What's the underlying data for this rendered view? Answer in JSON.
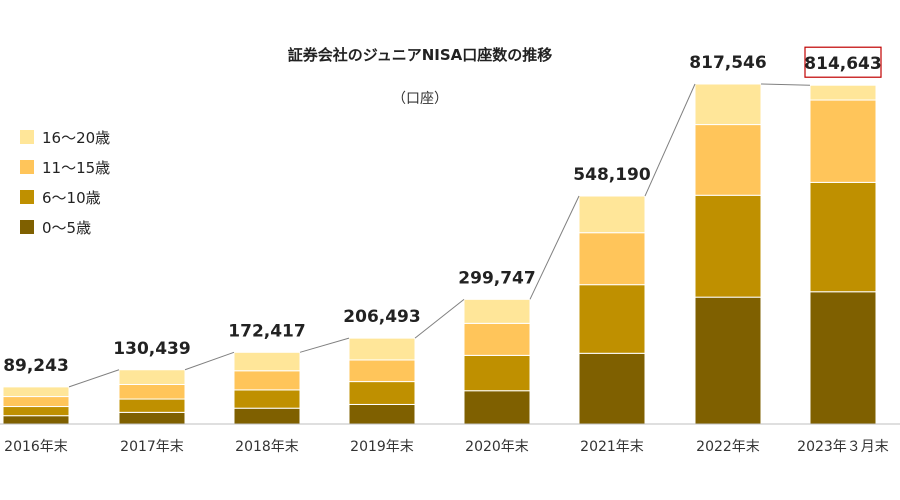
{
  "chart_data": {
    "type": "bar",
    "stacked": true,
    "title": "証券会社のジュニアNISA口座数の推移",
    "unit": "（口座）",
    "categories": [
      "2016年末",
      "2017年末",
      "2018年末",
      "2019年末",
      "2020年末",
      "2021年末",
      "2022年末",
      "2023年３月末"
    ],
    "totals": [
      89243,
      130439,
      172417,
      206493,
      299747,
      548190,
      817546,
      814643
    ],
    "total_labels": [
      "89,243",
      "130,439",
      "172,417",
      "206,493",
      "299,747",
      "548,190",
      "817,546",
      "814,643"
    ],
    "highlighted_total_index": 7,
    "series": [
      {
        "name": "0〜5歳",
        "color": "#7f6000",
        "values": [
          20000,
          28000,
          38000,
          47000,
          80000,
          170000,
          305000,
          318000
        ]
      },
      {
        "name": "6〜10歳",
        "color": "#bf9000",
        "values": [
          22000,
          32000,
          44000,
          55000,
          85000,
          165000,
          245000,
          263000
        ]
      },
      {
        "name": "11〜15歳",
        "color": "#ffc55a",
        "values": [
          24000,
          35000,
          46000,
          52000,
          77000,
          125000,
          170000,
          198000
        ]
      },
      {
        "name": "16〜20歳",
        "color": "#ffe699",
        "values": [
          23243,
          35439,
          44417,
          52493,
          57747,
          88190,
          97546,
          35643
        ]
      }
    ],
    "legend_order": [
      3,
      2,
      1,
      0
    ],
    "legend_position": "left",
    "connector_lines": true,
    "grid": false,
    "ylim": [
      0,
      900000
    ]
  }
}
